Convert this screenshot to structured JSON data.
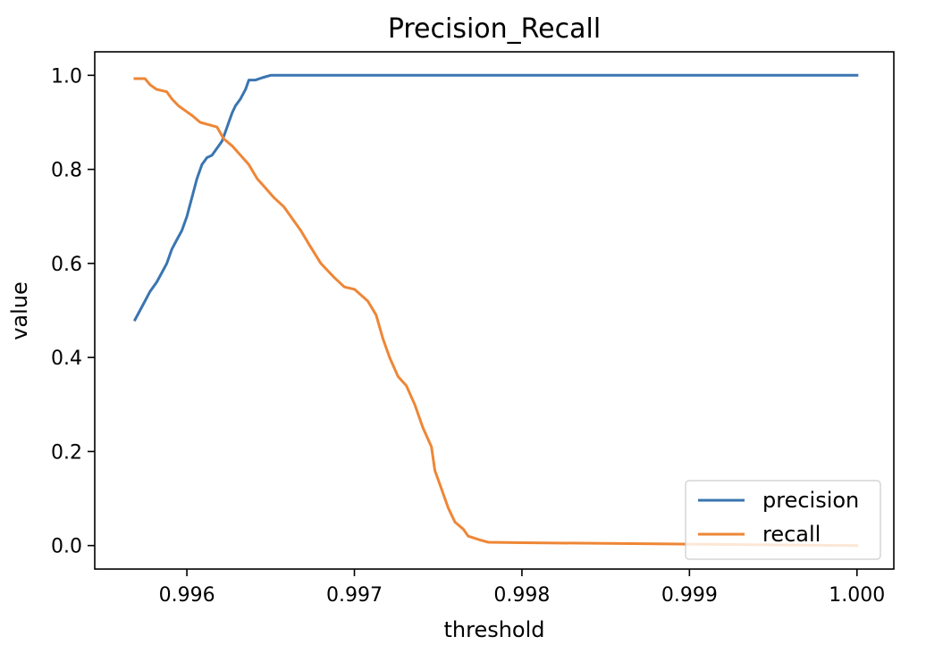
{
  "chart_data": {
    "type": "line",
    "title": "Precision_Recall",
    "xlabel": "threshold",
    "ylabel": "value",
    "xlim": [
      0.99545,
      1.00022
    ],
    "ylim": [
      -0.05,
      1.05
    ],
    "xticks": [
      0.996,
      0.997,
      0.998,
      0.999,
      1.0
    ],
    "xtick_labels": [
      "0.996",
      "0.997",
      "0.998",
      "0.999",
      "1.000"
    ],
    "yticks": [
      0.0,
      0.2,
      0.4,
      0.6,
      0.8,
      1.0
    ],
    "ytick_labels": [
      "0.0",
      "0.2",
      "0.4",
      "0.6",
      "0.8",
      "1.0"
    ],
    "grid": false,
    "legend_position": "lower right",
    "series": [
      {
        "name": "precision",
        "color": "#3a75b0",
        "x": [
          0.99569,
          0.99572,
          0.99575,
          0.99578,
          0.99582,
          0.99585,
          0.99588,
          0.99591,
          0.99594,
          0.99597,
          0.996,
          0.99603,
          0.99606,
          0.99609,
          0.99612,
          0.99615,
          0.99618,
          0.99621,
          0.99623,
          0.99625,
          0.99627,
          0.99629,
          0.99632,
          0.99635,
          0.99637,
          0.99639,
          0.99641,
          0.99645,
          0.9965,
          0.997,
          0.998,
          0.999,
          1.0
        ],
        "y": [
          0.48,
          0.5,
          0.52,
          0.54,
          0.56,
          0.58,
          0.6,
          0.63,
          0.65,
          0.67,
          0.7,
          0.74,
          0.78,
          0.81,
          0.825,
          0.83,
          0.845,
          0.86,
          0.88,
          0.9,
          0.92,
          0.935,
          0.95,
          0.97,
          0.99,
          0.99,
          0.99,
          0.995,
          1.0,
          1.0,
          1.0,
          1.0,
          1.0
        ]
      },
      {
        "name": "recall",
        "color": "#ee8636",
        "x": [
          0.99569,
          0.99575,
          0.99578,
          0.99582,
          0.99588,
          0.99591,
          0.99595,
          0.99599,
          0.99603,
          0.99608,
          0.99613,
          0.99618,
          0.99622,
          0.99627,
          0.99632,
          0.99637,
          0.99642,
          0.99647,
          0.99652,
          0.99658,
          0.99664,
          0.99668,
          0.99673,
          0.9968,
          0.99688,
          0.99694,
          0.997,
          0.99708,
          0.99713,
          0.99717,
          0.99721,
          0.99726,
          0.99731,
          0.99736,
          0.99741,
          0.99746,
          0.99748,
          0.99752,
          0.99756,
          0.9976,
          0.99765,
          0.99768,
          0.99775,
          0.9978,
          0.998,
          0.999,
          1.0
        ],
        "y": [
          0.993,
          0.993,
          0.98,
          0.97,
          0.965,
          0.95,
          0.935,
          0.925,
          0.915,
          0.9,
          0.895,
          0.89,
          0.865,
          0.85,
          0.83,
          0.81,
          0.78,
          0.76,
          0.74,
          0.72,
          0.69,
          0.67,
          0.64,
          0.6,
          0.57,
          0.55,
          0.545,
          0.52,
          0.49,
          0.44,
          0.4,
          0.36,
          0.34,
          0.3,
          0.25,
          0.21,
          0.16,
          0.12,
          0.08,
          0.05,
          0.035,
          0.02,
          0.012,
          0.007,
          0.006,
          0.003,
          0.0
        ]
      }
    ]
  }
}
